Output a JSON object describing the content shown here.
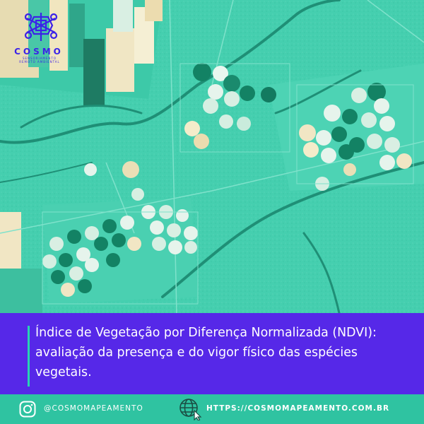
{
  "brand": {
    "name": "COSMO",
    "tagline": "SENSORIAMENTO REMOTO AMBIENTAL",
    "accent_color": "#5628e8",
    "teal_color": "#2fc3a1"
  },
  "caption": {
    "line1": "Índice de Vegetação por Diferença Normalizada (NDVI):",
    "line2": "avaliação da presença e do vigor físico das espécies",
    "line3": "vegetais."
  },
  "footer": {
    "instagram_icon": "instagram-icon",
    "handle": "@COSMOMAPEAMENTO",
    "website_icon": "globe-cursor-icon",
    "website": "HTTPS://COSMOMAPEAMENTO.COM.BR"
  }
}
